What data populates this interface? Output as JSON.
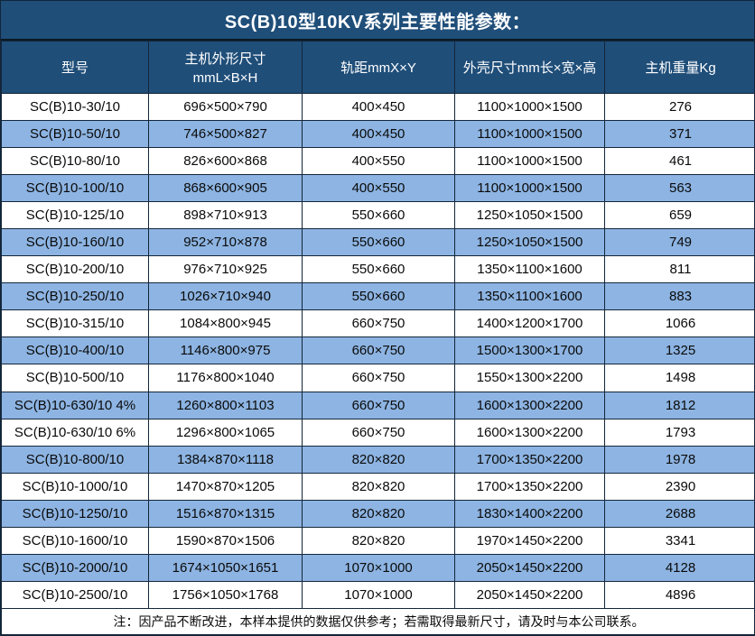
{
  "title": "SC(B)10型10KV系列主要性能参数：",
  "table": {
    "headers": [
      {
        "line1": "型号",
        "line2": ""
      },
      {
        "line1": "主机外形尺寸",
        "line2": "mmL×B×H"
      },
      {
        "line1": "轨距mmX×Y",
        "line2": ""
      },
      {
        "line1": "外壳尺寸mm长×宽×高",
        "line2": ""
      },
      {
        "line1": "主机重量Kg",
        "line2": ""
      }
    ],
    "rows": [
      [
        "SC(B)10-30/10",
        "696×500×790",
        "400×450",
        "1100×1000×1500",
        "276"
      ],
      [
        "SC(B)10-50/10",
        "746×500×827",
        "400×450",
        "1100×1000×1500",
        "371"
      ],
      [
        "SC(B)10-80/10",
        "826×600×868",
        "400×550",
        "1100×1000×1500",
        "461"
      ],
      [
        "SC(B)10-100/10",
        "868×600×905",
        "400×550",
        "1100×1000×1500",
        "563"
      ],
      [
        "SC(B)10-125/10",
        "898×710×913",
        "550×660",
        "1250×1050×1500",
        "659"
      ],
      [
        "SC(B)10-160/10",
        "952×710×878",
        "550×660",
        "1250×1050×1500",
        "749"
      ],
      [
        "SC(B)10-200/10",
        "976×710×925",
        "550×660",
        "1350×1100×1600",
        "811"
      ],
      [
        "SC(B)10-250/10",
        "1026×710×940",
        "550×660",
        "1350×1100×1600",
        "883"
      ],
      [
        "SC(B)10-315/10",
        "1084×800×945",
        "660×750",
        "1400×1200×1700",
        "1066"
      ],
      [
        "SC(B)10-400/10",
        "1146×800×975",
        "660×750",
        "1500×1300×1700",
        "1325"
      ],
      [
        "SC(B)10-500/10",
        "1176×800×1040",
        "660×750",
        "1550×1300×2200",
        "1498"
      ],
      [
        "SC(B)10-630/10 4%",
        "1260×800×1103",
        "660×750",
        "1600×1300×2200",
        "1812"
      ],
      [
        "SC(B)10-630/10 6%",
        "1296×800×1065",
        "660×750",
        "1600×1300×2200",
        "1793"
      ],
      [
        "SC(B)10-800/10",
        "1384×870×1118",
        "820×820",
        "1700×1350×2200",
        "1978"
      ],
      [
        "SC(B)10-1000/10",
        "1470×870×1205",
        "820×820",
        "1700×1350×2200",
        "2390"
      ],
      [
        "SC(B)10-1250/10",
        "1516×870×1315",
        "820×820",
        "1830×1400×2200",
        "2688"
      ],
      [
        "SC(B)10-1600/10",
        "1590×870×1506",
        "820×820",
        "1970×1450×2200",
        "3341"
      ],
      [
        "SC(B)10-2000/10",
        "1674×1050×1651",
        "1070×1000",
        "2050×1450×2200",
        "4128"
      ],
      [
        "SC(B)10-2500/10",
        "1756×1050×1768",
        "1070×1000",
        "2050×1450×2200",
        "4896"
      ]
    ],
    "note": "注：因产品不断改进，本样本提供的数据仅供参考；若需取得最新尺寸，请及时与本公司联系。"
  },
  "colors": {
    "header_bg": "#1F4E79",
    "row_alt_bg": "#8DB4E2",
    "row_bg": "#FFFFFF",
    "border": "#13263a",
    "header_text": "#FFFFFF",
    "body_text": "#0A0A0A"
  }
}
